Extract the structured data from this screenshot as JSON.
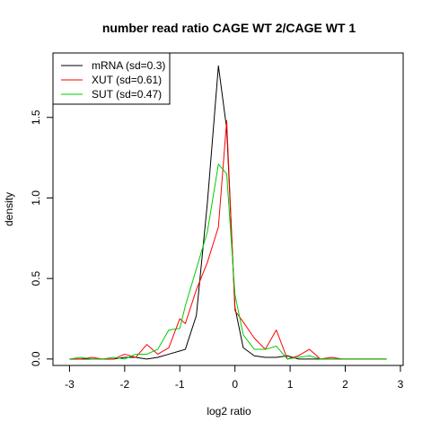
{
  "chart_data": {
    "type": "line",
    "title": "number read ratio CAGE WT 2/CAGE WT 1",
    "xlabel": "log2 ratio",
    "ylabel": "density",
    "xlim": [
      -3.3,
      3.05
    ],
    "ylim": [
      -0.04,
      1.9
    ],
    "xticks": [
      -3,
      -2,
      -1,
      0,
      1,
      2,
      3
    ],
    "yticks": [
      0.0,
      0.5,
      1.0,
      1.5
    ],
    "xtick_labels": [
      "-3",
      "-2",
      "-1",
      "0",
      "1",
      "2",
      "3"
    ],
    "ytick_labels": [
      "0.0",
      "0.5",
      "1.0",
      "1.5"
    ],
    "grid": false,
    "legend_position": "top-left",
    "x": [
      -3.0,
      -2.8,
      -2.6,
      -2.4,
      -2.2,
      -2.0,
      -1.8,
      -1.6,
      -1.4,
      -1.2,
      -1.0,
      -0.9,
      -0.7,
      -0.5,
      -0.3,
      -0.15,
      0.0,
      0.15,
      0.35,
      0.55,
      0.75,
      0.95,
      1.15,
      1.35,
      1.55,
      1.75,
      1.95,
      2.15,
      2.35,
      2.55,
      2.75
    ],
    "series": [
      {
        "name": "mRNA (sd=0.3)",
        "color": "#000000",
        "values": [
          0.0,
          0.0,
          0.0,
          0.0,
          0.0,
          0.01,
          0.01,
          0.0,
          0.01,
          0.03,
          0.05,
          0.06,
          0.27,
          0.97,
          1.82,
          1.43,
          0.32,
          0.07,
          0.02,
          0.01,
          0.01,
          0.02,
          0.0,
          0.0,
          0.0,
          0.0,
          0.0,
          0.0,
          0.0,
          0.0,
          0.0
        ]
      },
      {
        "name": "XUT (sd=0.61)",
        "color": "#ff0000",
        "values": [
          0.0,
          0.0,
          0.01,
          0.0,
          0.0,
          0.03,
          0.01,
          0.09,
          0.03,
          0.07,
          0.25,
          0.22,
          0.43,
          0.6,
          0.82,
          1.48,
          0.3,
          0.23,
          0.13,
          0.06,
          0.18,
          0.0,
          0.02,
          0.06,
          0.0,
          0.01,
          0.0,
          0.0,
          0.0,
          0.0,
          0.0
        ]
      },
      {
        "name": "SUT (sd=0.47)",
        "color": "#00cc00",
        "values": [
          0.0,
          0.01,
          0.0,
          0.0,
          0.01,
          0.0,
          0.03,
          0.03,
          0.06,
          0.18,
          0.19,
          0.33,
          0.56,
          0.79,
          1.21,
          1.15,
          0.4,
          0.15,
          0.06,
          0.06,
          0.08,
          0.0,
          0.01,
          0.02,
          0.0,
          0.0,
          0.0,
          0.0,
          0.0,
          0.0,
          0.0
        ]
      }
    ]
  }
}
